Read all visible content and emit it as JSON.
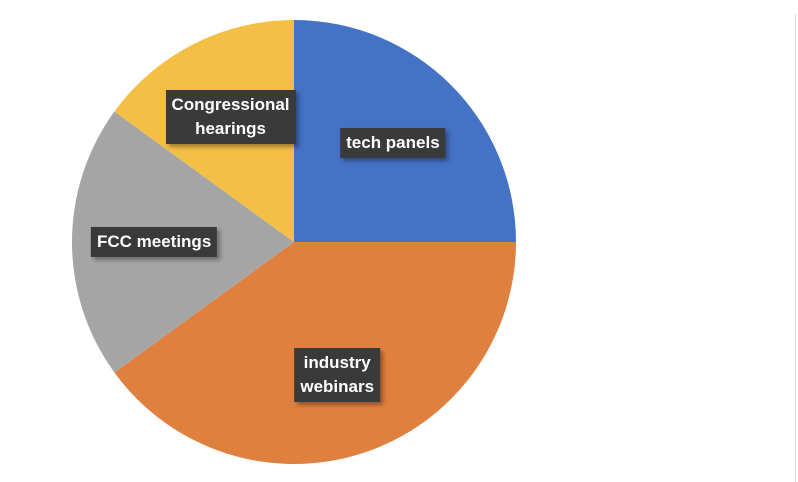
{
  "chart_data": {
    "type": "pie",
    "title": "",
    "slices": [
      {
        "label": "tech panels",
        "value": 25,
        "color": "#4472C4"
      },
      {
        "label": "industry\nwebinars",
        "value": 40,
        "color": "#E0803E"
      },
      {
        "label": "FCC meetings",
        "value": 20,
        "color": "#A5A5A5"
      },
      {
        "label": "Congressional\nhearings",
        "value": 15,
        "color": "#F4BF45"
      }
    ],
    "legend": "none",
    "data_labels": "category name"
  }
}
